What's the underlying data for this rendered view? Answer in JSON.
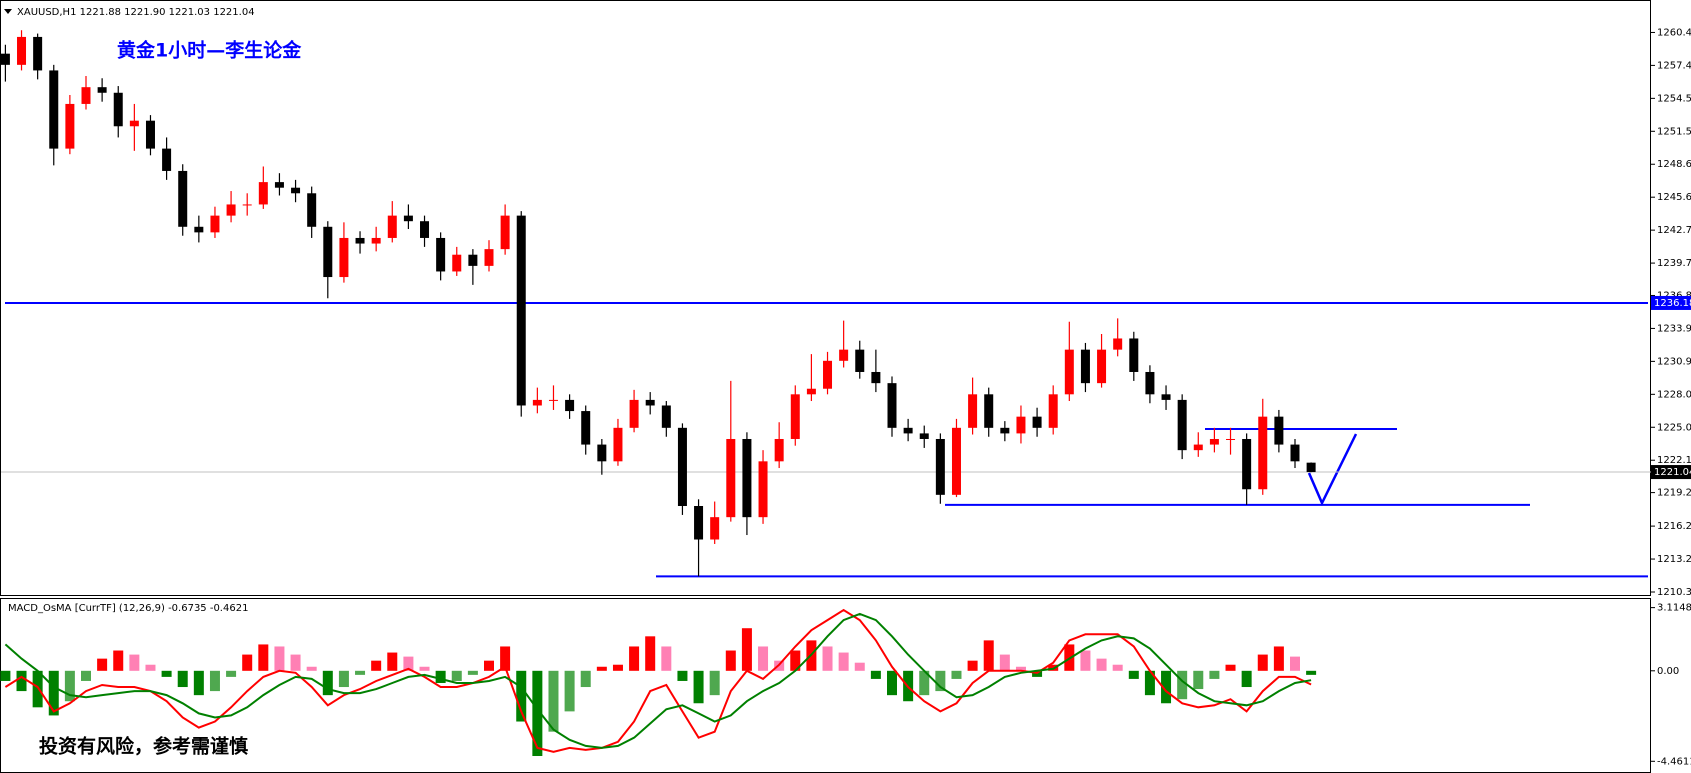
{
  "chart_data": [
    {
      "type": "candlestick",
      "title": "XAUUSD,H1  1221.88 1221.90 1221.03 1221.04",
      "annotation": "黄金1小时—李生论金",
      "up_color": "#ff0000",
      "down_color": "#000000",
      "level_color": "#0000ff",
      "price_line_color": "#c0c0c0",
      "open": [
        1258.5,
        1257.5,
        1260,
        1257,
        1250,
        1254,
        1255.5,
        1255,
        1252,
        1252.5,
        1250,
        1248,
        1243,
        1242.5,
        1244,
        1245,
        1245,
        1247,
        1246.5,
        1246,
        1243,
        1238.5,
        1242,
        1241.5,
        1242,
        1244,
        1243.5,
        1242,
        1239,
        1240.5,
        1239.5,
        1241,
        1244,
        1227,
        1227.5,
        1227.5,
        1226.5,
        1223.5,
        1222,
        1225,
        1227.5,
        1227,
        1225,
        1218,
        1215,
        1217,
        1224,
        1217,
        1222,
        1224,
        1228,
        1228.5,
        1231,
        1232,
        1230,
        1229,
        1225,
        1224.5,
        1224,
        1219,
        1225,
        1228,
        1225,
        1224.5,
        1226,
        1225,
        1228,
        1232,
        1229,
        1232,
        1233,
        1230,
        1228,
        1227.5,
        1223,
        1223.5,
        1224,
        1224,
        1219.5,
        1226,
        1223.5,
        1221.88
      ],
      "high": [
        1259.3,
        1260.6,
        1260.3,
        1257.5,
        1254.8,
        1256.5,
        1256.3,
        1255.6,
        1254,
        1253,
        1251,
        1248.6,
        1244,
        1244.8,
        1246.2,
        1246,
        1248.4,
        1247.8,
        1247.2,
        1246.6,
        1243.5,
        1243.4,
        1242.6,
        1243,
        1245.3,
        1245,
        1244,
        1242.5,
        1241.2,
        1241,
        1241.8,
        1245,
        1244.4,
        1228.6,
        1228.8,
        1228,
        1227,
        1224,
        1225.8,
        1228.4,
        1228.2,
        1227.4,
        1225.4,
        1218.6,
        1218.4,
        1229.2,
        1224.6,
        1223,
        1225.5,
        1228.8,
        1231.6,
        1231.8,
        1234.6,
        1232.8,
        1232,
        1229.6,
        1225.8,
        1225.2,
        1224.5,
        1225.8,
        1229.5,
        1228.6,
        1225.6,
        1227,
        1226.8,
        1228.8,
        1234.5,
        1232.6,
        1233.4,
        1234.8,
        1233.6,
        1230.6,
        1228.8,
        1228,
        1224.6,
        1225,
        1225,
        1224.5,
        1227.6,
        1226.6,
        1224,
        1221.9
      ],
      "low": [
        1256,
        1257,
        1256.2,
        1248.5,
        1249.5,
        1253.5,
        1254.2,
        1251,
        1249.8,
        1249.4,
        1247.2,
        1242.2,
        1241.6,
        1242,
        1243.4,
        1244,
        1244.6,
        1245.8,
        1245.2,
        1242,
        1236.6,
        1238,
        1240.6,
        1240.8,
        1241.6,
        1242.8,
        1241.2,
        1238.2,
        1238.6,
        1237.8,
        1239,
        1240.5,
        1226,
        1226.3,
        1226.6,
        1225.8,
        1222.6,
        1220.8,
        1221.6,
        1224.6,
        1226.2,
        1224.2,
        1217.2,
        1211.7,
        1214.6,
        1216.6,
        1215.4,
        1216.4,
        1221.4,
        1223.4,
        1227.4,
        1228,
        1230.4,
        1229.4,
        1228.2,
        1224.2,
        1223.8,
        1223.2,
        1218.2,
        1218.8,
        1224.4,
        1224.2,
        1223.8,
        1223.6,
        1224.2,
        1224.4,
        1227.4,
        1228.2,
        1228.6,
        1231.4,
        1229.2,
        1227.2,
        1226.6,
        1222.2,
        1222.4,
        1222.8,
        1222.6,
        1218.1,
        1219,
        1222.8,
        1221.4,
        1221.03
      ],
      "close": [
        1257.5,
        1260,
        1257,
        1250,
        1254,
        1255.5,
        1255,
        1252,
        1252.5,
        1250,
        1248,
        1243,
        1242.5,
        1244,
        1245,
        1245,
        1247,
        1246.5,
        1246,
        1243,
        1238.5,
        1242,
        1241.5,
        1242,
        1244,
        1243.5,
        1242,
        1239,
        1240.5,
        1239.5,
        1241,
        1244,
        1227,
        1227.5,
        1227.5,
        1226.5,
        1223.5,
        1222,
        1225,
        1227.5,
        1227,
        1225,
        1218,
        1215,
        1217,
        1224,
        1217,
        1222,
        1224,
        1228,
        1228.5,
        1231,
        1232,
        1230,
        1229,
        1225,
        1224.5,
        1224,
        1219,
        1225,
        1228,
        1225,
        1224.5,
        1226,
        1225,
        1228,
        1232,
        1229,
        1232,
        1233,
        1230,
        1228,
        1227.5,
        1223,
        1223.5,
        1224,
        1224,
        1219.5,
        1226,
        1223.5,
        1222,
        1221.04
      ],
      "levels": [
        1236.18,
        1224.9,
        1218.1,
        1211.7
      ],
      "ylim": [
        1210.3,
        1262.5
      ],
      "yticks": [
        {
          "value": 1260.4,
          "label": "1260.40"
        },
        {
          "value": 1257.45,
          "label": "1257.45"
        },
        {
          "value": 1254.5,
          "label": "1254.50"
        },
        {
          "value": 1251.55,
          "label": "1251.55"
        },
        {
          "value": 1248.6,
          "label": "1248.60"
        },
        {
          "value": 1245.65,
          "label": "1245.65"
        },
        {
          "value": 1242.7,
          "label": "1242.70"
        },
        {
          "value": 1239.75,
          "label": "1239.75"
        },
        1236.85,
        {
          "value": 1233.9,
          "label": "1233.90"
        },
        {
          "value": 1230.95,
          "label": "1230.95"
        },
        {
          "value": 1228,
          "label": "1228.00"
        },
        {
          "value": 1225.05,
          "label": "1225.05"
        },
        {
          "value": 1222.1,
          "label": "1222.10"
        },
        {
          "value": 1219.2,
          "label": "1219.20"
        },
        {
          "value": 1216.2,
          "label": "1216.20"
        },
        1213.25,
        {
          "value": 1210.3,
          "label": "1210.30"
        }
      ]
    },
    {
      "type": "macd",
      "title": "MACD_OsMA [CurrTF] (12,26,9) -0.6735 -0.4621",
      "annotation": "投资有风险，参考需谨慎",
      "hist_colors": [
        "#ff0000",
        "#ff80b4",
        "#008000",
        "#4fa84f"
      ],
      "histogram": [
        -0.5,
        -1,
        -1.8,
        -2.2,
        -1.5,
        -0.5,
        0.6,
        1,
        0.8,
        0.3,
        -0.3,
        -0.8,
        -1.2,
        -1,
        -0.3,
        0.8,
        1.3,
        1.2,
        0.8,
        0.2,
        -1.2,
        -0.8,
        -0.2,
        0.5,
        0.9,
        0.7,
        0.2,
        -0.6,
        -0.5,
        -0.2,
        0.5,
        1.2,
        -2.5,
        -4.2,
        -3,
        -2,
        -0.8,
        0.2,
        0.3,
        1.2,
        1.7,
        1.2,
        -0.5,
        -1.6,
        -1.2,
        1,
        2.1,
        1.2,
        0.5,
        1,
        1.5,
        1.2,
        0.9,
        0.4,
        -0.4,
        -1.2,
        -1.5,
        -1.2,
        -1,
        -0.4,
        0.5,
        1.5,
        0.8,
        0.2,
        -0.3,
        0.3,
        1.3,
        1,
        0.6,
        0.3,
        -0.4,
        -1.2,
        -1.6,
        -1.4,
        -0.9,
        -0.4,
        0.3,
        -0.8,
        0.8,
        1.2,
        0.7,
        -0.2
      ],
      "series": [
        {
          "color": "#ff0000",
          "values": [
            -0.8,
            -0.3,
            -0.8,
            -2,
            -1.6,
            -1,
            -0.7,
            -0.8,
            -0.8,
            -1,
            -1.5,
            -2.3,
            -2.8,
            -2.5,
            -1.8,
            -1,
            -0.3,
            0,
            -0.1,
            -0.8,
            -1.7,
            -1.2,
            -0.9,
            -0.5,
            -0.2,
            0.1,
            -0.3,
            -0.8,
            -0.8,
            -0.6,
            -0.3,
            0.2,
            -2,
            -3.8,
            -4,
            -3.8,
            -3.9,
            -3.8,
            -3.5,
            -2.5,
            -1,
            -0.7,
            -2,
            -3.3,
            -3,
            -1,
            0,
            -0.4,
            0.3,
            1.2,
            2,
            2.5,
            3,
            2.5,
            1.5,
            0.2,
            -0.8,
            -1.5,
            -2,
            -1.6,
            -0.6,
            0,
            0,
            0,
            -0.1,
            0.4,
            1.5,
            1.8,
            1.8,
            1.8,
            1.2,
            0,
            -1,
            -1.6,
            -1.8,
            -1.7,
            -1.4,
            -2,
            -1,
            -0.3,
            -0.3,
            -0.6735
          ]
        },
        {
          "color": "#008000",
          "values": [
            1.3,
            0.6,
            0,
            -0.8,
            -1.2,
            -1.3,
            -1.2,
            -1.1,
            -1,
            -1,
            -1.2,
            -1.6,
            -2.1,
            -2.3,
            -2.2,
            -1.8,
            -1.2,
            -0.7,
            -0.3,
            -0.4,
            -0.9,
            -1.1,
            -1.1,
            -0.9,
            -0.6,
            -0.3,
            -0.2,
            -0.4,
            -0.6,
            -0.6,
            -0.5,
            -0.3,
            -0.8,
            -1.9,
            -2.9,
            -3.4,
            -3.7,
            -3.8,
            -3.7,
            -3.3,
            -2.6,
            -1.9,
            -1.7,
            -2.1,
            -2.5,
            -2.2,
            -1.5,
            -1,
            -0.6,
            0,
            0.8,
            1.7,
            2.5,
            2.8,
            2.5,
            1.7,
            0.8,
            0,
            -0.8,
            -1.3,
            -1.2,
            -0.8,
            -0.3,
            -0.1,
            0,
            0.1,
            0.6,
            1.1,
            1.5,
            1.7,
            1.6,
            1.1,
            0.3,
            -0.5,
            -1.1,
            -1.5,
            -1.6,
            -1.7,
            -1.5,
            -1,
            -0.6,
            -0.4621
          ]
        }
      ],
      "ylim": [
        -4.89,
        3.54
      ],
      "yticks": [
        3.1148,
        {
          "value": 0,
          "label": "0.00"
        },
        -4.4611
      ]
    }
  ]
}
